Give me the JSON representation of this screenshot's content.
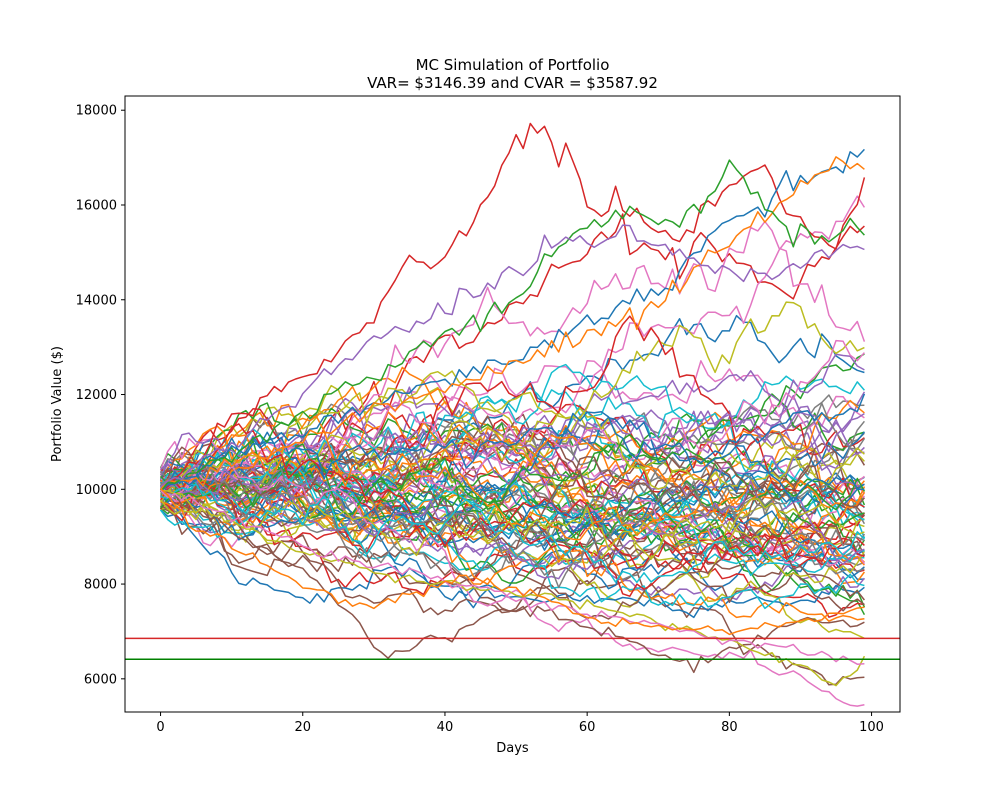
{
  "chart_data": {
    "type": "line",
    "title": "MC Simulation of Portfolio",
    "subtitle": "VAR= $3146.39 and CVAR = $3587.92",
    "xlabel": "Days",
    "ylabel": "Portfolio Value ($)",
    "xlim": [
      -5,
      104
    ],
    "ylim": [
      5300,
      18300
    ],
    "xticks": [
      0,
      20,
      40,
      60,
      80,
      100
    ],
    "yticks": [
      6000,
      8000,
      10000,
      12000,
      14000,
      16000,
      18000
    ],
    "grid": false,
    "num_paths": 100,
    "days": 100,
    "start_value": 10000,
    "palette": [
      "#1f77b4",
      "#ff7f0e",
      "#2ca02c",
      "#d62728",
      "#9467bd",
      "#8c564b",
      "#e377c2",
      "#7f7f7f",
      "#bcbd22",
      "#17becf"
    ],
    "reference_lines": [
      {
        "value": 6853.61,
        "color": "#d62728"
      },
      {
        "value": 6412.08,
        "color": "#008000"
      }
    ],
    "anchor_paths": [
      {
        "color": "#d62728",
        "points": [
          [
            0,
            10000
          ],
          [
            5,
            10500
          ],
          [
            10,
            11500
          ],
          [
            20,
            12300
          ],
          [
            30,
            13500
          ],
          [
            35,
            15000
          ],
          [
            38,
            14600
          ],
          [
            42,
            15300
          ],
          [
            47,
            16500
          ],
          [
            50,
            17300
          ],
          [
            52,
            17650
          ],
          [
            55,
            17500
          ],
          [
            56,
            16700
          ],
          [
            57,
            17400
          ],
          [
            60,
            16000
          ],
          [
            62,
            15600
          ],
          [
            64,
            16300
          ],
          [
            68,
            15700
          ],
          [
            72,
            15200
          ],
          [
            80,
            16500
          ],
          [
            85,
            16900
          ],
          [
            90,
            15600
          ],
          [
            95,
            15100
          ],
          [
            99,
            16500
          ]
        ]
      },
      {
        "color": "#1f77b4",
        "points": [
          [
            0,
            10000
          ],
          [
            10,
            10800
          ],
          [
            20,
            11200
          ],
          [
            30,
            11800
          ],
          [
            40,
            12300
          ],
          [
            50,
            12800
          ],
          [
            60,
            13500
          ],
          [
            70,
            14200
          ],
          [
            75,
            14900
          ],
          [
            80,
            15800
          ],
          [
            85,
            16000
          ],
          [
            90,
            16600
          ],
          [
            95,
            16900
          ],
          [
            99,
            17200
          ]
        ]
      },
      {
        "color": "#ff7f0e",
        "points": [
          [
            0,
            10000
          ],
          [
            10,
            10500
          ],
          [
            20,
            11000
          ],
          [
            30,
            11600
          ],
          [
            40,
            12100
          ],
          [
            50,
            12700
          ],
          [
            60,
            13300
          ],
          [
            70,
            13900
          ],
          [
            80,
            15200
          ],
          [
            90,
            16400
          ],
          [
            95,
            16900
          ],
          [
            99,
            16700
          ]
        ]
      },
      {
        "color": "#2ca02c",
        "points": [
          [
            0,
            10000
          ],
          [
            10,
            10700
          ],
          [
            20,
            11600
          ],
          [
            30,
            12300
          ],
          [
            40,
            13300
          ],
          [
            50,
            14000
          ],
          [
            55,
            15000
          ],
          [
            60,
            15500
          ],
          [
            65,
            15900
          ],
          [
            70,
            15700
          ],
          [
            75,
            15800
          ],
          [
            80,
            16800
          ],
          [
            84,
            16300
          ],
          [
            88,
            15500
          ],
          [
            92,
            15200
          ],
          [
            99,
            15600
          ]
        ]
      },
      {
        "color": "#9467bd",
        "points": [
          [
            0,
            10000
          ],
          [
            10,
            11000
          ],
          [
            20,
            12000
          ],
          [
            30,
            13200
          ],
          [
            40,
            13800
          ],
          [
            50,
            14700
          ],
          [
            55,
            15200
          ],
          [
            60,
            15300
          ],
          [
            65,
            15600
          ],
          [
            70,
            15100
          ],
          [
            80,
            14600
          ],
          [
            90,
            14700
          ],
          [
            99,
            15200
          ]
        ]
      },
      {
        "color": "#8c564b",
        "points": [
          [
            0,
            10000
          ],
          [
            5,
            9600
          ],
          [
            10,
            9100
          ],
          [
            20,
            8300
          ],
          [
            26,
            7500
          ],
          [
            30,
            6700
          ],
          [
            32,
            6450
          ],
          [
            35,
            6650
          ],
          [
            40,
            6900
          ],
          [
            45,
            7200
          ],
          [
            50,
            7500
          ],
          [
            55,
            7400
          ],
          [
            60,
            7100
          ],
          [
            65,
            6900
          ],
          [
            70,
            6500
          ],
          [
            75,
            6300
          ],
          [
            80,
            6600
          ],
          [
            85,
            6900
          ],
          [
            90,
            7300
          ],
          [
            95,
            7200
          ],
          [
            99,
            7100
          ]
        ]
      },
      {
        "color": "#bcbd22",
        "points": [
          [
            0,
            10000
          ],
          [
            10,
            9300
          ],
          [
            20,
            8700
          ],
          [
            30,
            8300
          ],
          [
            40,
            8000
          ],
          [
            50,
            7800
          ],
          [
            60,
            7600
          ],
          [
            70,
            7200
          ],
          [
            80,
            6800
          ],
          [
            90,
            6300
          ],
          [
            94,
            5900
          ],
          [
            97,
            6000
          ],
          [
            99,
            6500
          ]
        ]
      },
      {
        "color": "#e377c2",
        "points": [
          [
            0,
            10000
          ],
          [
            10,
            9400
          ],
          [
            20,
            8800
          ],
          [
            30,
            8400
          ],
          [
            40,
            8100
          ],
          [
            50,
            7700
          ],
          [
            60,
            7400
          ],
          [
            70,
            7100
          ],
          [
            80,
            6800
          ],
          [
            90,
            6600
          ],
          [
            99,
            6300
          ]
        ]
      },
      {
        "color": "#ff7f0e",
        "points": [
          [
            0,
            10000
          ],
          [
            5,
            9200
          ],
          [
            10,
            8800
          ],
          [
            15,
            8400
          ],
          [
            20,
            8000
          ],
          [
            25,
            7700
          ],
          [
            30,
            7500
          ],
          [
            35,
            7800
          ],
          [
            40,
            8100
          ],
          [
            50,
            7900
          ],
          [
            60,
            7300
          ],
          [
            70,
            7100
          ],
          [
            80,
            7000
          ],
          [
            90,
            7200
          ],
          [
            99,
            7500
          ]
        ]
      }
    ]
  }
}
